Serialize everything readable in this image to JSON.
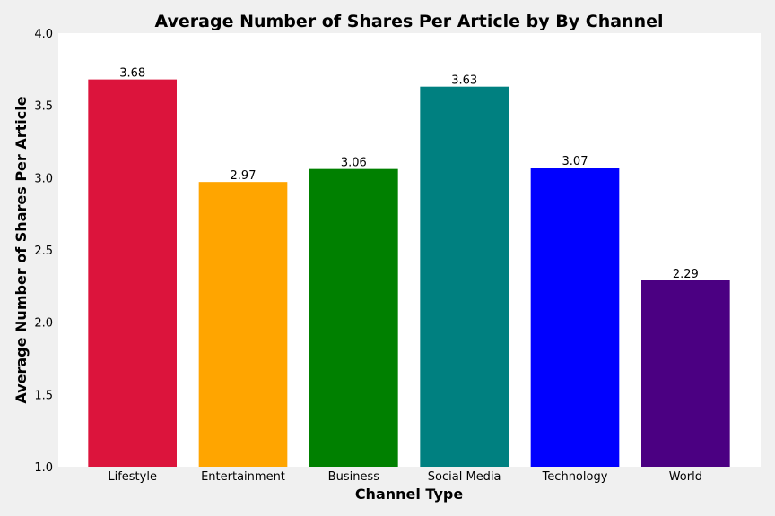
{
  "chart_data": {
    "type": "bar",
    "title": "Average Number of Shares Per Article by By Channel",
    "xlabel": "Channel Type",
    "ylabel": "Average Number of Shares Per Article",
    "categories": [
      "Lifestyle",
      "Entertainment",
      "Business",
      "Social Media",
      "Technology",
      "World"
    ],
    "values": [
      3.68,
      2.97,
      3.06,
      3.63,
      3.07,
      2.29
    ],
    "value_labels": [
      "3.68",
      "2.97",
      "3.06",
      "3.63",
      "3.07",
      "2.29"
    ],
    "colors": [
      "#dc143c",
      "#ffa500",
      "#008000",
      "#008080",
      "#0000ff",
      "#4b0082"
    ],
    "ylim": [
      1.0,
      4.0
    ],
    "yticks": [
      "1.0",
      "1.5",
      "2.0",
      "2.5",
      "3.0",
      "3.5",
      "4.0"
    ],
    "grid": false,
    "legend": "none",
    "background": "#f0f0f0",
    "plot_background": "#ffffff"
  }
}
